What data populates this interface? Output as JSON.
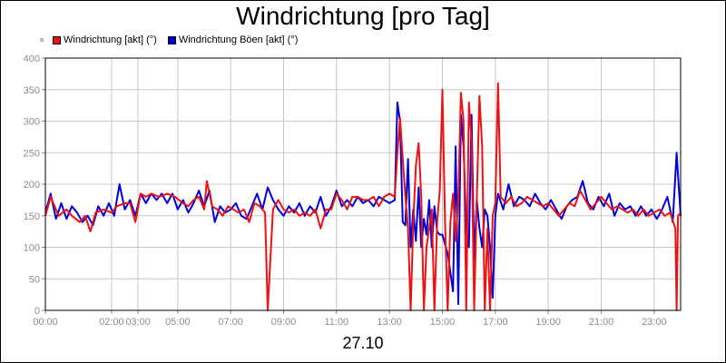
{
  "chart_data": {
    "type": "line",
    "title": "Windrichtung [pro Tag]",
    "xlabel": "27.10",
    "ylabel": "",
    "ylim": [
      0,
      400
    ],
    "xlim": [
      0,
      24
    ],
    "yticks": [
      0,
      50,
      100,
      150,
      200,
      250,
      300,
      350,
      400
    ],
    "xticks": [
      {
        "x": 0,
        "label": "00:00"
      },
      {
        "x": 2.5,
        "label": "02:00"
      },
      {
        "x": 3.5,
        "label": "03:00"
      },
      {
        "x": 5,
        "label": "05:00"
      },
      {
        "x": 7,
        "label": "07:00"
      },
      {
        "x": 9,
        "label": "09:00"
      },
      {
        "x": 11,
        "label": "11:00"
      },
      {
        "x": 13,
        "label": "13:00"
      },
      {
        "x": 15,
        "label": "15:00"
      },
      {
        "x": 17,
        "label": "17:00"
      },
      {
        "x": 19,
        "label": "19:00"
      },
      {
        "x": 21,
        "label": "21:00"
      },
      {
        "x": 23,
        "label": "23:00"
      }
    ],
    "grid": true,
    "legend_position": "top-left",
    "colors": {
      "series1": "#ee1111",
      "series2": "#0000dd",
      "grid": "#c8c8c8"
    },
    "series": [
      {
        "name": "Windrichtung [akt] (°)",
        "color": "#ee1111",
        "points": [
          [
            0.0,
            150
          ],
          [
            0.2,
            180
          ],
          [
            0.5,
            150
          ],
          [
            0.8,
            160
          ],
          [
            1.0,
            150
          ],
          [
            1.3,
            140
          ],
          [
            1.5,
            150
          ],
          [
            1.7,
            125
          ],
          [
            1.9,
            155
          ],
          [
            2.2,
            160
          ],
          [
            2.5,
            155
          ],
          [
            2.7,
            165
          ],
          [
            3.0,
            170
          ],
          [
            3.2,
            170
          ],
          [
            3.4,
            140
          ],
          [
            3.6,
            185
          ],
          [
            3.8,
            180
          ],
          [
            4.0,
            185
          ],
          [
            4.3,
            180
          ],
          [
            4.6,
            185
          ],
          [
            4.9,
            180
          ],
          [
            5.2,
            170
          ],
          [
            5.4,
            165
          ],
          [
            5.6,
            175
          ],
          [
            5.8,
            180
          ],
          [
            6.0,
            160
          ],
          [
            6.1,
            205
          ],
          [
            6.3,
            165
          ],
          [
            6.5,
            160
          ],
          [
            6.7,
            150
          ],
          [
            6.9,
            165
          ],
          [
            7.1,
            160
          ],
          [
            7.3,
            155
          ],
          [
            7.5,
            160
          ],
          [
            7.7,
            140
          ],
          [
            7.9,
            170
          ],
          [
            8.1,
            165
          ],
          [
            8.3,
            155
          ],
          [
            8.4,
            0
          ],
          [
            8.6,
            160
          ],
          [
            8.8,
            175
          ],
          [
            9.0,
            160
          ],
          [
            9.2,
            155
          ],
          [
            9.4,
            160
          ],
          [
            9.6,
            150
          ],
          [
            9.8,
            155
          ],
          [
            10.0,
            150
          ],
          [
            10.2,
            160
          ],
          [
            10.4,
            130
          ],
          [
            10.6,
            160
          ],
          [
            10.8,
            160
          ],
          [
            11.0,
            185
          ],
          [
            11.2,
            175
          ],
          [
            11.4,
            160
          ],
          [
            11.6,
            180
          ],
          [
            11.8,
            180
          ],
          [
            12.0,
            175
          ],
          [
            12.2,
            175
          ],
          [
            12.4,
            180
          ],
          [
            12.6,
            165
          ],
          [
            12.8,
            180
          ],
          [
            13.0,
            185
          ],
          [
            13.2,
            180
          ],
          [
            13.3,
            250
          ],
          [
            13.4,
            305
          ],
          [
            13.5,
            240
          ],
          [
            13.6,
            180
          ],
          [
            13.7,
            130
          ],
          [
            13.8,
            0
          ],
          [
            13.9,
            140
          ],
          [
            14.0,
            230
          ],
          [
            14.1,
            265
          ],
          [
            14.2,
            180
          ],
          [
            14.3,
            0
          ],
          [
            14.4,
            100
          ],
          [
            14.5,
            130
          ],
          [
            14.6,
            160
          ],
          [
            14.7,
            0
          ],
          [
            14.8,
            140
          ],
          [
            14.9,
            190
          ],
          [
            15.0,
            350
          ],
          [
            15.1,
            140
          ],
          [
            15.2,
            0
          ],
          [
            15.3,
            140
          ],
          [
            15.4,
            185
          ],
          [
            15.5,
            110
          ],
          [
            15.6,
            180
          ],
          [
            15.7,
            345
          ],
          [
            15.8,
            300
          ],
          [
            15.9,
            0
          ],
          [
            16.0,
            330
          ],
          [
            16.1,
            270
          ],
          [
            16.2,
            0
          ],
          [
            16.3,
            175
          ],
          [
            16.4,
            340
          ],
          [
            16.5,
            260
          ],
          [
            16.6,
            0
          ],
          [
            16.7,
            130
          ],
          [
            16.8,
            0
          ],
          [
            16.9,
            150
          ],
          [
            17.0,
            170
          ],
          [
            17.1,
            360
          ],
          [
            17.2,
            180
          ],
          [
            17.4,
            170
          ],
          [
            17.6,
            180
          ],
          [
            17.8,
            165
          ],
          [
            18.0,
            170
          ],
          [
            18.2,
            180
          ],
          [
            18.4,
            175
          ],
          [
            18.6,
            170
          ],
          [
            18.8,
            165
          ],
          [
            19.0,
            170
          ],
          [
            19.2,
            160
          ],
          [
            19.4,
            150
          ],
          [
            19.6,
            160
          ],
          [
            19.8,
            170
          ],
          [
            20.0,
            165
          ],
          [
            20.2,
            190
          ],
          [
            20.4,
            175
          ],
          [
            20.6,
            160
          ],
          [
            20.8,
            170
          ],
          [
            21.0,
            180
          ],
          [
            21.2,
            170
          ],
          [
            21.4,
            160
          ],
          [
            21.6,
            165
          ],
          [
            21.8,
            160
          ],
          [
            22.0,
            155
          ],
          [
            22.2,
            160
          ],
          [
            22.4,
            150
          ],
          [
            22.6,
            160
          ],
          [
            22.8,
            150
          ],
          [
            23.0,
            155
          ],
          [
            23.2,
            160
          ],
          [
            23.4,
            150
          ],
          [
            23.6,
            155
          ],
          [
            23.8,
            130
          ],
          [
            23.85,
            0
          ],
          [
            23.9,
            150
          ],
          [
            24.0,
            155
          ]
        ]
      },
      {
        "name": "Windrichtung Böen [akt] (°)",
        "color": "#0000dd",
        "points": [
          [
            0.0,
            155
          ],
          [
            0.2,
            185
          ],
          [
            0.4,
            145
          ],
          [
            0.6,
            170
          ],
          [
            0.8,
            145
          ],
          [
            1.0,
            165
          ],
          [
            1.2,
            155
          ],
          [
            1.4,
            140
          ],
          [
            1.6,
            150
          ],
          [
            1.8,
            135
          ],
          [
            2.0,
            165
          ],
          [
            2.2,
            150
          ],
          [
            2.4,
            170
          ],
          [
            2.6,
            150
          ],
          [
            2.8,
            200
          ],
          [
            3.0,
            160
          ],
          [
            3.2,
            175
          ],
          [
            3.4,
            150
          ],
          [
            3.6,
            185
          ],
          [
            3.8,
            170
          ],
          [
            4.0,
            185
          ],
          [
            4.2,
            175
          ],
          [
            4.4,
            185
          ],
          [
            4.6,
            170
          ],
          [
            4.8,
            185
          ],
          [
            5.0,
            160
          ],
          [
            5.2,
            175
          ],
          [
            5.4,
            155
          ],
          [
            5.6,
            170
          ],
          [
            5.8,
            190
          ],
          [
            6.0,
            165
          ],
          [
            6.2,
            190
          ],
          [
            6.4,
            140
          ],
          [
            6.6,
            165
          ],
          [
            6.8,
            155
          ],
          [
            7.0,
            160
          ],
          [
            7.2,
            170
          ],
          [
            7.4,
            150
          ],
          [
            7.6,
            145
          ],
          [
            7.8,
            165
          ],
          [
            8.0,
            185
          ],
          [
            8.2,
            160
          ],
          [
            8.4,
            195
          ],
          [
            8.6,
            175
          ],
          [
            8.8,
            160
          ],
          [
            9.0,
            150
          ],
          [
            9.2,
            165
          ],
          [
            9.4,
            155
          ],
          [
            9.6,
            170
          ],
          [
            9.8,
            150
          ],
          [
            10.0,
            165
          ],
          [
            10.2,
            155
          ],
          [
            10.4,
            180
          ],
          [
            10.6,
            150
          ],
          [
            10.8,
            165
          ],
          [
            11.0,
            190
          ],
          [
            11.2,
            165
          ],
          [
            11.4,
            175
          ],
          [
            11.6,
            165
          ],
          [
            11.8,
            180
          ],
          [
            12.0,
            170
          ],
          [
            12.2,
            175
          ],
          [
            12.4,
            165
          ],
          [
            12.6,
            180
          ],
          [
            12.8,
            175
          ],
          [
            13.0,
            170
          ],
          [
            13.2,
            175
          ],
          [
            13.3,
            330
          ],
          [
            13.4,
            300
          ],
          [
            13.5,
            140
          ],
          [
            13.6,
            135
          ],
          [
            13.7,
            240
          ],
          [
            13.8,
            100
          ],
          [
            13.9,
            160
          ],
          [
            14.0,
            110
          ],
          [
            14.1,
            195
          ],
          [
            14.2,
            100
          ],
          [
            14.3,
            145
          ],
          [
            14.4,
            120
          ],
          [
            14.5,
            175
          ],
          [
            14.6,
            100
          ],
          [
            14.7,
            165
          ],
          [
            14.8,
            125
          ],
          [
            14.9,
            120
          ],
          [
            15.0,
            120
          ],
          [
            15.2,
            90
          ],
          [
            15.3,
            60
          ],
          [
            15.4,
            30
          ],
          [
            15.5,
            260
          ],
          [
            15.6,
            10
          ],
          [
            15.7,
            310
          ],
          [
            15.8,
            260
          ],
          [
            15.9,
            130
          ],
          [
            16.0,
            100
          ],
          [
            16.1,
            310
          ],
          [
            16.2,
            80
          ],
          [
            16.3,
            175
          ],
          [
            16.4,
            130
          ],
          [
            16.5,
            100
          ],
          [
            16.6,
            160
          ],
          [
            16.7,
            150
          ],
          [
            16.8,
            100
          ],
          [
            16.9,
            20
          ],
          [
            17.0,
            150
          ],
          [
            17.1,
            185
          ],
          [
            17.3,
            160
          ],
          [
            17.5,
            200
          ],
          [
            17.7,
            165
          ],
          [
            17.9,
            180
          ],
          [
            18.1,
            175
          ],
          [
            18.3,
            165
          ],
          [
            18.5,
            185
          ],
          [
            18.7,
            170
          ],
          [
            18.9,
            160
          ],
          [
            19.1,
            175
          ],
          [
            19.3,
            160
          ],
          [
            19.5,
            145
          ],
          [
            19.7,
            165
          ],
          [
            19.9,
            175
          ],
          [
            20.1,
            180
          ],
          [
            20.3,
            205
          ],
          [
            20.5,
            170
          ],
          [
            20.7,
            160
          ],
          [
            20.9,
            180
          ],
          [
            21.1,
            165
          ],
          [
            21.3,
            185
          ],
          [
            21.5,
            150
          ],
          [
            21.7,
            170
          ],
          [
            21.9,
            160
          ],
          [
            22.1,
            165
          ],
          [
            22.3,
            150
          ],
          [
            22.5,
            165
          ],
          [
            22.7,
            150
          ],
          [
            22.9,
            160
          ],
          [
            23.1,
            145
          ],
          [
            23.3,
            160
          ],
          [
            23.5,
            180
          ],
          [
            23.7,
            140
          ],
          [
            23.85,
            250
          ],
          [
            24.0,
            150
          ]
        ]
      }
    ]
  }
}
